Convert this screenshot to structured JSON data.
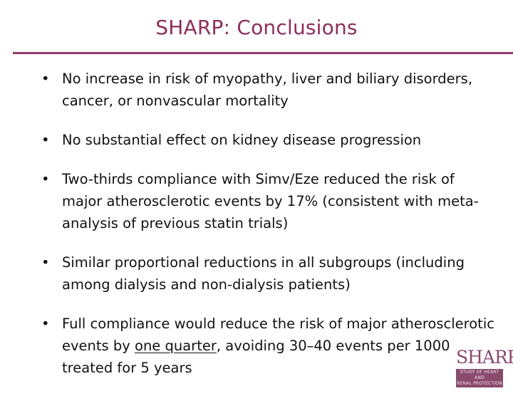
{
  "slide": {
    "title": "SHARP: Conclusions",
    "accent_color": "#8e2d5a",
    "bullet_marker": "•",
    "bullets": [
      {
        "text": "No increase in risk of myopathy, liver and biliary disorders, cancer, or nonvascular mortality"
      },
      {
        "text": "No substantial effect on kidney disease progression"
      },
      {
        "text": "Two-thirds compliance with Simv/Eze reduced the risk of major atherosclerotic events by 17% (consistent with meta-analysis of previous statin trials)"
      },
      {
        "text": "Similar proportional reductions in all subgroups (including among dialysis and non-dialysis patients)"
      },
      {
        "text_before": "Full compliance would reduce the risk of major atherosclerotic events by ",
        "text_underlined": "one quarter",
        "text_after": ", avoiding 30–40 events per 1000 treated for 5 years"
      }
    ]
  },
  "logo": {
    "wordmark": "SHARP",
    "tagline_line1": "STUDY OF HEART AND",
    "tagline_line2": "RENAL PROTECTION",
    "color": "#8a4a6c"
  }
}
